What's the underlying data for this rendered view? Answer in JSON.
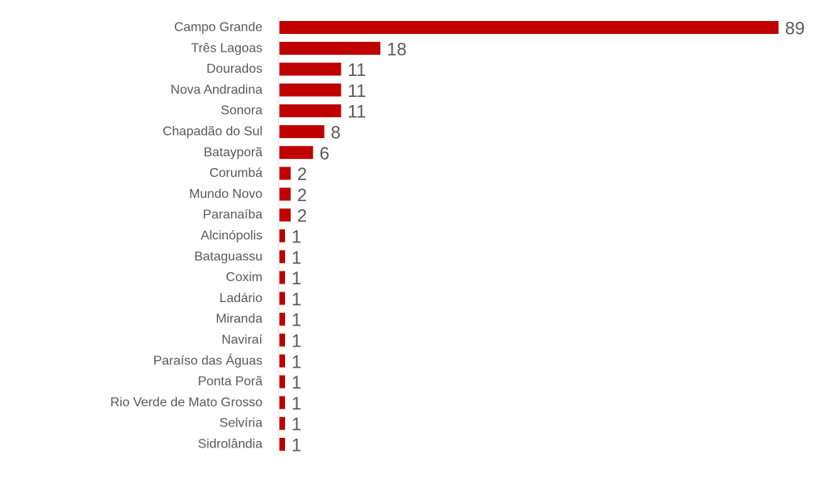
{
  "chart_data": {
    "type": "bar",
    "orientation": "horizontal",
    "categories": [
      "Campo Grande",
      "Três Lagoas",
      "Dourados",
      "Nova Andradina",
      "Sonora",
      "Chapadão do Sul",
      "Batayporã",
      "Corumbá",
      "Mundo Novo",
      "Paranaíba",
      "Alcinópolis",
      "Bataguassu",
      "Coxim",
      "Ladário",
      "Miranda",
      "Naviraí",
      "Paraíso das Águas",
      "Ponta Porã",
      "Rio Verde de Mato Grosso",
      "Selvíria",
      "Sidrolândia"
    ],
    "values": [
      89,
      18,
      11,
      11,
      11,
      8,
      6,
      2,
      2,
      2,
      1,
      1,
      1,
      1,
      1,
      1,
      1,
      1,
      1,
      1,
      1
    ],
    "bar_color": "#c00000",
    "axis_line_color": "#d9d9d9",
    "label_color": "#595959",
    "title": "",
    "xlabel": "",
    "ylabel": "",
    "xlim": [
      0,
      89
    ],
    "grid": false,
    "legend": "none"
  }
}
